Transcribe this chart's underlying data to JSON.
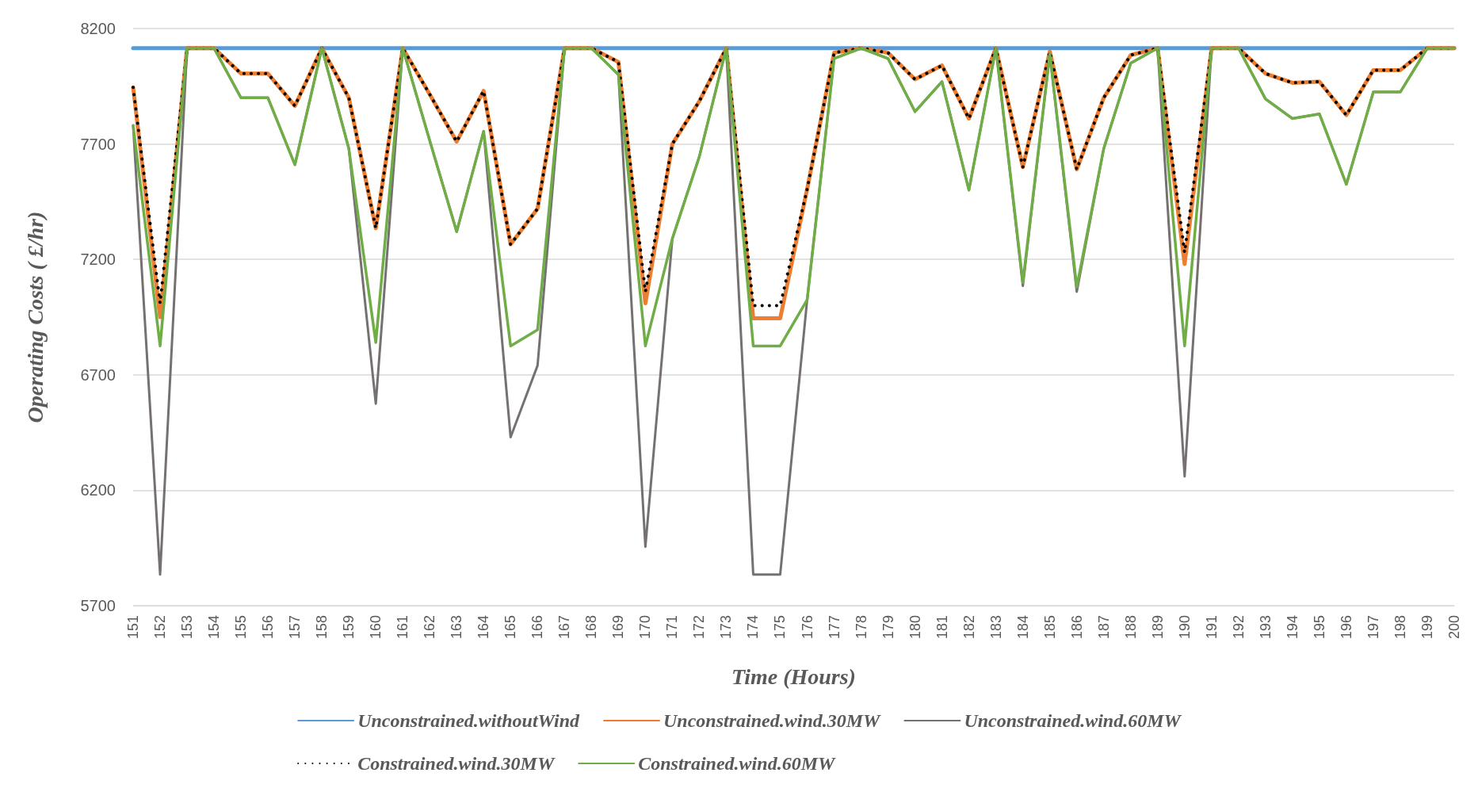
{
  "chart_data": {
    "type": "line",
    "xlabel": "Time (Hours)",
    "ylabel": "Operating Costs ( £/hr)",
    "categories": [
      "151",
      "152",
      "153",
      "154",
      "155",
      "156",
      "157",
      "158",
      "159",
      "160",
      "161",
      "162",
      "163",
      "164",
      "165",
      "166",
      "167",
      "168",
      "169",
      "170",
      "171",
      "172",
      "173",
      "174",
      "175",
      "176",
      "177",
      "178",
      "179",
      "180",
      "181",
      "182",
      "183",
      "184",
      "185",
      "186",
      "187",
      "188",
      "189",
      "190",
      "191",
      "192",
      "193",
      "194",
      "195",
      "196",
      "197",
      "198",
      "199",
      "200"
    ],
    "ylim": [
      5700,
      8200
    ],
    "yticks": [
      5700,
      6200,
      6700,
      7200,
      7700,
      8200
    ],
    "grid": "y",
    "legend": "bottom",
    "marker": "none",
    "series": [
      {
        "name": "Unconstrained.withoutWind",
        "color": "#5b9bd5",
        "line_style": "solid",
        "values": [
          8115,
          8115,
          8115,
          8115,
          8115,
          8115,
          8115,
          8115,
          8115,
          8115,
          8115,
          8115,
          8115,
          8115,
          8115,
          8115,
          8115,
          8115,
          8115,
          8115,
          8115,
          8115,
          8115,
          8115,
          8115,
          8115,
          8115,
          8115,
          8115,
          8115,
          8115,
          8115,
          8115,
          8115,
          8115,
          8115,
          8115,
          8115,
          8115,
          8115,
          8115,
          8115,
          8115,
          8115,
          8115,
          8115,
          8115,
          8115,
          8115,
          8115
        ]
      },
      {
        "name": "Unconstrained.wind.30MW",
        "color": "#ed7d31",
        "line_style": "solid",
        "values": [
          7945,
          6950,
          8115,
          8115,
          8005,
          8005,
          7865,
          8115,
          7900,
          7335,
          8115,
          7915,
          7710,
          7930,
          7265,
          7420,
          8115,
          8115,
          8055,
          7010,
          7700,
          7885,
          8115,
          6945,
          6945,
          7505,
          8095,
          8115,
          8095,
          7980,
          8040,
          7810,
          8115,
          7600,
          8100,
          7590,
          7900,
          8085,
          8115,
          7180,
          8115,
          8115,
          8005,
          7965,
          7970,
          7825,
          8020,
          8020,
          8115,
          8115
        ]
      },
      {
        "name": "Unconstrained.wind.60MW",
        "color": "#767171",
        "line_style": "solid",
        "values": [
          7780,
          5835,
          8115,
          8115,
          7900,
          7900,
          7610,
          8115,
          7680,
          6575,
          8115,
          7715,
          7320,
          7755,
          6430,
          6740,
          8115,
          8115,
          8000,
          5955,
          7290,
          7645,
          8115,
          5835,
          5835,
          7025,
          8070,
          8115,
          8070,
          7840,
          7970,
          7500,
          8115,
          7085,
          8090,
          7060,
          7680,
          8050,
          8115,
          6260,
          8115,
          8115,
          7895,
          7810,
          7830,
          7525,
          7925,
          7925,
          8115,
          8115
        ]
      },
      {
        "name": "Constrained.wind.30MW",
        "color": "#000000",
        "line_style": "dotted",
        "values": [
          7945,
          7010,
          8115,
          8115,
          8005,
          8005,
          7865,
          8115,
          7900,
          7335,
          8115,
          7915,
          7710,
          7930,
          7265,
          7420,
          8115,
          8115,
          8055,
          7060,
          7700,
          7885,
          8115,
          7000,
          7000,
          7505,
          8095,
          8115,
          8095,
          7980,
          8040,
          7810,
          8115,
          7600,
          8100,
          7590,
          7900,
          8085,
          8115,
          7230,
          8115,
          8115,
          8005,
          7965,
          7970,
          7825,
          8020,
          8020,
          8115,
          8115
        ]
      },
      {
        "name": "Constrained.wind.60MW",
        "color": "#70ad47",
        "line_style": "solid",
        "values": [
          7780,
          6825,
          8115,
          8115,
          7900,
          7900,
          7610,
          8115,
          7680,
          6840,
          8115,
          7715,
          7320,
          7755,
          6825,
          6895,
          8115,
          8115,
          8000,
          6825,
          7290,
          7645,
          8115,
          6825,
          6825,
          7025,
          8070,
          8115,
          8070,
          7840,
          7970,
          7500,
          8115,
          7100,
          8090,
          7080,
          7680,
          8050,
          8115,
          6825,
          8115,
          8115,
          7895,
          7810,
          7830,
          7525,
          7925,
          7925,
          8115,
          8115
        ]
      }
    ]
  }
}
